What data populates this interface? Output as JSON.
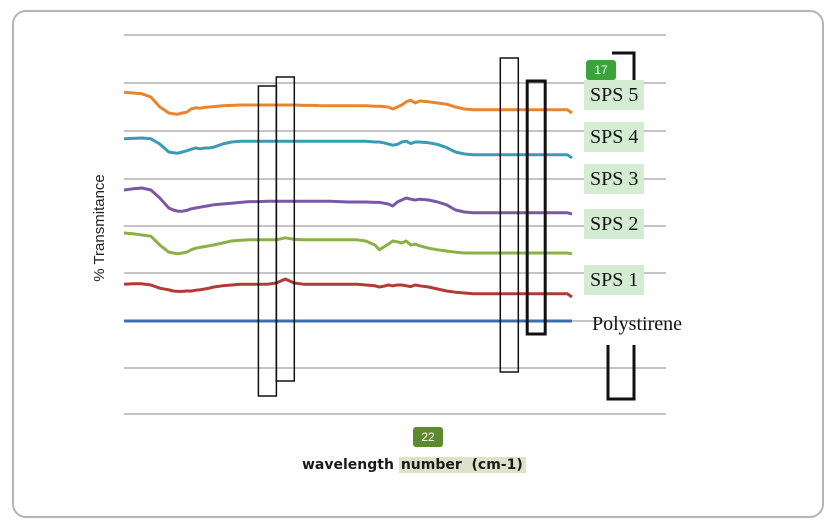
{
  "badges": {
    "top": "17",
    "bottom": "22"
  },
  "chart_data": {
    "type": "line",
    "title": "",
    "ylabel": "% Transmitance",
    "xlabel_part1": "wavelength ",
    "xlabel_part2": "number  (cm-1)",
    "grid": true,
    "x": [
      0,
      2,
      4,
      6,
      8,
      10,
      11,
      12,
      13,
      14,
      15,
      16,
      17,
      18,
      19,
      20,
      22,
      24,
      26,
      28,
      30,
      32,
      34,
      36,
      38,
      40,
      42,
      44,
      46,
      48,
      50,
      52,
      54,
      56,
      57,
      58,
      59,
      60,
      61,
      62,
      63,
      64,
      65,
      66,
      68,
      70,
      72,
      74,
      76,
      78,
      80,
      82,
      84,
      86,
      88,
      90,
      92,
      94,
      95,
      96,
      97,
      98,
      99,
      100
    ],
    "series": [
      {
        "name": "SPS 5",
        "color": "#e8852e",
        "offset": 5,
        "values": [
          0.18,
          0.2,
          0.22,
          0.3,
          0.55,
          0.7,
          0.72,
          0.73,
          0.7,
          0.68,
          0.6,
          0.57,
          0.58,
          0.56,
          0.55,
          0.54,
          0.52,
          0.51,
          0.5,
          0.5,
          0.5,
          0.5,
          0.5,
          0.5,
          0.5,
          0.51,
          0.51,
          0.52,
          0.52,
          0.52,
          0.52,
          0.52,
          0.52,
          0.53,
          0.53,
          0.54,
          0.55,
          0.6,
          0.55,
          0.5,
          0.42,
          0.38,
          0.45,
          0.4,
          0.42,
          0.45,
          0.48,
          0.55,
          0.6,
          0.62,
          0.62,
          0.62,
          0.62,
          0.62,
          0.62,
          0.62,
          0.62,
          0.62,
          0.62,
          0.62,
          0.62,
          0.62,
          0.62,
          0.7
        ]
      },
      {
        "name": "SPS 4",
        "color": "#3b9bb5",
        "offset": 4,
        "values": [
          0.22,
          0.21,
          0.2,
          0.22,
          0.35,
          0.55,
          0.57,
          0.58,
          0.55,
          0.52,
          0.48,
          0.45,
          0.47,
          0.45,
          0.45,
          0.43,
          0.35,
          0.3,
          0.28,
          0.28,
          0.28,
          0.28,
          0.28,
          0.28,
          0.28,
          0.28,
          0.28,
          0.28,
          0.28,
          0.28,
          0.28,
          0.28,
          0.28,
          0.3,
          0.3,
          0.32,
          0.35,
          0.38,
          0.36,
          0.3,
          0.28,
          0.34,
          0.3,
          0.3,
          0.32,
          0.36,
          0.44,
          0.55,
          0.6,
          0.62,
          0.62,
          0.62,
          0.62,
          0.62,
          0.62,
          0.62,
          0.62,
          0.62,
          0.62,
          0.62,
          0.62,
          0.62,
          0.62,
          0.7
        ]
      },
      {
        "name": "SPS 3",
        "color": "#7b57a8",
        "offset": 3,
        "values": [
          0.25,
          0.22,
          0.2,
          0.25,
          0.45,
          0.7,
          0.75,
          0.78,
          0.78,
          0.76,
          0.72,
          0.7,
          0.68,
          0.66,
          0.64,
          0.62,
          0.6,
          0.58,
          0.56,
          0.54,
          0.54,
          0.53,
          0.53,
          0.53,
          0.53,
          0.53,
          0.53,
          0.53,
          0.53,
          0.54,
          0.55,
          0.55,
          0.55,
          0.56,
          0.56,
          0.58,
          0.6,
          0.65,
          0.55,
          0.5,
          0.45,
          0.48,
          0.5,
          0.48,
          0.5,
          0.55,
          0.62,
          0.75,
          0.8,
          0.82,
          0.82,
          0.82,
          0.82,
          0.82,
          0.82,
          0.82,
          0.82,
          0.82,
          0.82,
          0.82,
          0.82,
          0.82,
          0.82,
          0.85
        ]
      },
      {
        "name": "SPS 2",
        "color": "#8cb045",
        "offset": 2,
        "values": [
          0.2,
          0.22,
          0.25,
          0.28,
          0.5,
          0.68,
          0.7,
          0.72,
          0.7,
          0.68,
          0.62,
          0.58,
          0.56,
          0.54,
          0.52,
          0.5,
          0.45,
          0.4,
          0.38,
          0.37,
          0.37,
          0.37,
          0.37,
          0.32,
          0.36,
          0.37,
          0.37,
          0.37,
          0.37,
          0.37,
          0.37,
          0.37,
          0.4,
          0.5,
          0.62,
          0.55,
          0.48,
          0.4,
          0.42,
          0.45,
          0.4,
          0.5,
          0.48,
          0.52,
          0.58,
          0.62,
          0.65,
          0.68,
          0.7,
          0.7,
          0.7,
          0.7,
          0.7,
          0.7,
          0.7,
          0.7,
          0.7,
          0.7,
          0.7,
          0.7,
          0.7,
          0.7,
          0.7,
          0.72
        ]
      },
      {
        "name": "SPS 1",
        "color": "#b23b35",
        "offset": 1,
        "values": [
          0.28,
          0.27,
          0.27,
          0.3,
          0.38,
          0.42,
          0.45,
          0.46,
          0.46,
          0.45,
          0.45,
          0.43,
          0.42,
          0.4,
          0.38,
          0.35,
          0.32,
          0.3,
          0.28,
          0.28,
          0.28,
          0.28,
          0.25,
          0.15,
          0.25,
          0.28,
          0.28,
          0.28,
          0.28,
          0.28,
          0.28,
          0.28,
          0.3,
          0.32,
          0.35,
          0.33,
          0.3,
          0.32,
          0.3,
          0.3,
          0.32,
          0.34,
          0.3,
          0.32,
          0.35,
          0.4,
          0.45,
          0.48,
          0.5,
          0.52,
          0.52,
          0.52,
          0.52,
          0.52,
          0.52,
          0.52,
          0.52,
          0.52,
          0.52,
          0.52,
          0.52,
          0.52,
          0.52,
          0.6
        ]
      },
      {
        "name": "Polystirene",
        "color": "#3a6fb0",
        "offset": 0,
        "values": [
          0.0,
          0.0,
          0.0,
          0.0,
          0.0,
          0.0,
          0.0,
          0.0,
          0.0,
          0.0,
          0.0,
          0.0,
          0.0,
          0.0,
          0.0,
          0.0,
          0.0,
          0.0,
          0.0,
          0.0,
          0.0,
          0.0,
          0.0,
          0.0,
          0.0,
          0.0,
          0.0,
          0.0,
          0.0,
          0.0,
          0.0,
          0.0,
          0.0,
          0.0,
          0.0,
          0.0,
          0.0,
          0.0,
          0.0,
          0.0,
          0.0,
          0.0,
          0.0,
          0.0,
          0.0,
          0.0,
          0.0,
          0.0,
          0.0,
          0.0,
          0.0,
          0.0,
          0.0,
          0.0,
          0.0,
          0.0,
          0.0,
          0.0,
          0.0,
          0.0,
          0.0,
          0.0,
          0.0,
          0.0
        ]
      }
    ],
    "highlight_boxes_x": [
      [
        30,
        34
      ],
      [
        34,
        38
      ],
      [
        84,
        88
      ],
      [
        90,
        94
      ]
    ]
  }
}
